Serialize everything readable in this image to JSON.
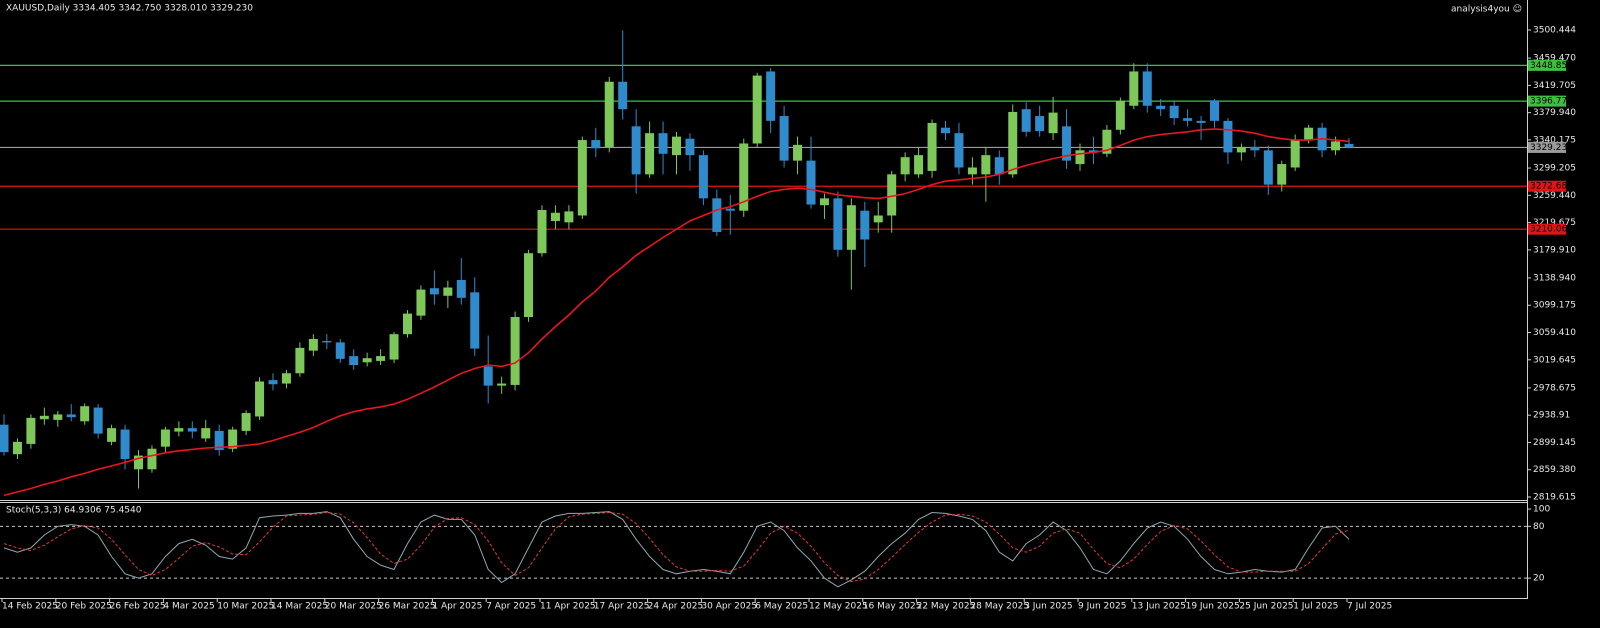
{
  "chart_data": [
    {
      "type": "candlestick",
      "title": "XAUUSD,Daily  3334.405 3342.750 3328.010 3329.230",
      "watermark": "analysis4you ☺",
      "categories": [
        "14 Feb 2025",
        null,
        null,
        null,
        "20 Feb 2025",
        null,
        null,
        null,
        "26 Feb 2025",
        null,
        null,
        null,
        "4 Mar 2025",
        null,
        null,
        null,
        "10 Mar 2025",
        null,
        null,
        null,
        "14 Mar 2025",
        null,
        null,
        null,
        "20 Mar 2025",
        null,
        null,
        null,
        "26 Mar 2025",
        null,
        null,
        null,
        "1 Apr 2025",
        null,
        null,
        null,
        "7 Apr 2025",
        null,
        null,
        null,
        "11 Apr 2025",
        null,
        null,
        null,
        "17 Apr 2025",
        null,
        null,
        null,
        "24 Apr 2025",
        null,
        null,
        null,
        "30 Apr 2025",
        null,
        null,
        null,
        "6 May 2025",
        null,
        null,
        null,
        "12 May 2025",
        null,
        null,
        null,
        "16 May 2025",
        null,
        null,
        null,
        "22 May 2025",
        null,
        null,
        null,
        "28 May 2025",
        null,
        null,
        null,
        "3 Jun 2025",
        null,
        null,
        null,
        "9 Jun 2025",
        null,
        null,
        null,
        "13 Jun 2025",
        null,
        null,
        null,
        "19 Jun 2025",
        null,
        null,
        null,
        "25 Jun 2025",
        null,
        null,
        null,
        "1 Jul 2025",
        null,
        null,
        null,
        "7 Jul 2025"
      ],
      "open": [
        2925,
        2882,
        2897,
        2933,
        2932,
        2940,
        2930,
        2950,
        2900,
        2918,
        2860,
        2860,
        2893,
        2915,
        2920,
        2905,
        2916,
        2890,
        2916,
        2937,
        2990,
        2985,
        3000,
        3033,
        3047,
        3045,
        3025,
        3016,
        3018,
        3020,
        3057,
        3084,
        3124,
        3113,
        3136,
        3118,
        3010,
        2982,
        2983,
        3082,
        3175,
        3222,
        3220,
        3230,
        3340,
        3330,
        3425,
        3360,
        3290,
        3350,
        3318,
        3342,
        3318,
        3255,
        3240,
        3237,
        3335,
        3440,
        3375,
        3310,
        3310,
        3245,
        3255,
        3180,
        3237,
        3220,
        3230,
        3290,
        3290,
        3295,
        3358,
        3350,
        3290,
        3290,
        3315,
        3290,
        3385,
        3375,
        3350,
        3360,
        3305,
        3325,
        3320,
        3355,
        3390,
        3440,
        3390,
        3390,
        3372,
        3368,
        3398,
        3368,
        3322,
        3330,
        3325,
        3275,
        3300,
        3340,
        3358,
        3325,
        3334.405
      ],
      "high": [
        2940,
        2905,
        2940,
        2950,
        2945,
        2955,
        2956,
        2955,
        2925,
        2925,
        2888,
        2895,
        2922,
        2930,
        2930,
        2932,
        2925,
        2922,
        2946,
        2994,
        3000,
        3005,
        3045,
        3057,
        3057,
        3050,
        3035,
        3030,
        3035,
        3060,
        3092,
        3128,
        3150,
        3135,
        3168,
        3140,
        3055,
        2995,
        3090,
        3180,
        3245,
        3245,
        3245,
        3345,
        3358,
        3432,
        3500,
        3385,
        3367,
        3367,
        3352,
        3350,
        3325,
        3268,
        3260,
        3342,
        3438,
        3445,
        3390,
        3345,
        3345,
        3262,
        3265,
        3255,
        3250,
        3250,
        3295,
        3322,
        3330,
        3370,
        3368,
        3365,
        3315,
        3330,
        3325,
        3392,
        3395,
        3390,
        3403,
        3385,
        3335,
        3345,
        3362,
        3402,
        3452,
        3452,
        3400,
        3398,
        3385,
        3375,
        3400,
        3372,
        3335,
        3340,
        3332,
        3310,
        3348,
        3362,
        3365,
        3345,
        3342.75
      ],
      "low": [
        2880,
        2875,
        2890,
        2925,
        2922,
        2930,
        2925,
        2905,
        2895,
        2860,
        2832,
        2855,
        2885,
        2908,
        2905,
        2900,
        2880,
        2885,
        2910,
        2932,
        2975,
        2978,
        2995,
        3025,
        3035,
        3015,
        3005,
        3010,
        3012,
        3015,
        3052,
        3078,
        3100,
        3095,
        3100,
        3025,
        2956,
        2970,
        2975,
        3075,
        3170,
        3210,
        3210,
        3225,
        3315,
        3322,
        3370,
        3262,
        3285,
        3290,
        3290,
        3295,
        3245,
        3200,
        3202,
        3228,
        3330,
        3350,
        3300,
        3290,
        3240,
        3225,
        3170,
        3122,
        3155,
        3205,
        3205,
        3280,
        3285,
        3285,
        3340,
        3290,
        3275,
        3250,
        3275,
        3285,
        3345,
        3345,
        3340,
        3298,
        3295,
        3305,
        3315,
        3348,
        3385,
        3380,
        3375,
        3362,
        3360,
        3340,
        3358,
        3305,
        3310,
        3315,
        3260,
        3265,
        3295,
        3335,
        3315,
        3318,
        3328.01
      ],
      "close": [
        2885,
        2900,
        2935,
        2938,
        2940,
        2936,
        2952,
        2912,
        2920,
        2875,
        2880,
        2890,
        2918,
        2920,
        2915,
        2920,
        2888,
        2918,
        2942,
        2988,
        2984,
        3000,
        3037,
        3050,
        3045,
        3021,
        3012,
        3022,
        3025,
        3057,
        3087,
        3122,
        3115,
        3125,
        3110,
        3036,
        2982,
        2985,
        3082,
        3175,
        3238,
        3234,
        3236,
        3340,
        3328,
        3425,
        3385,
        3290,
        3350,
        3320,
        3345,
        3318,
        3255,
        3206,
        3237,
        3335,
        3434,
        3368,
        3310,
        3333,
        3246,
        3255,
        3180,
        3245,
        3195,
        3230,
        3290,
        3315,
        3318,
        3365,
        3350,
        3300,
        3300,
        3318,
        3290,
        3381,
        3352,
        3353,
        3380,
        3310,
        3325,
        3322,
        3355,
        3397,
        3440,
        3390,
        3385,
        3372,
        3368,
        3365,
        3368,
        3322,
        3330,
        3325,
        3275,
        3305,
        3340,
        3358,
        3325,
        3338,
        3329.23
      ],
      "up_color": "#7ec85a",
      "down_color": "#2f8bcc",
      "ma": {
        "color": "#e8161e",
        "values": [
          2822,
          2827,
          2832,
          2838,
          2843,
          2849,
          2854,
          2860,
          2865,
          2870,
          2876,
          2880,
          2884,
          2887,
          2889,
          2891,
          2892,
          2893,
          2895,
          2897,
          2902,
          2908,
          2914,
          2921,
          2930,
          2938,
          2944,
          2948,
          2951,
          2955,
          2962,
          2971,
          2980,
          2990,
          3000,
          3007,
          3012,
          3010,
          3015,
          3030,
          3050,
          3068,
          3085,
          3104,
          3120,
          3140,
          3155,
          3172,
          3185,
          3198,
          3210,
          3222,
          3230,
          3238,
          3243,
          3250,
          3258,
          3265,
          3268,
          3270,
          3268,
          3264,
          3260,
          3258,
          3256,
          3255,
          3258,
          3262,
          3268,
          3275,
          3280,
          3282,
          3284,
          3286,
          3290,
          3297,
          3303,
          3308,
          3313,
          3317,
          3320,
          3322,
          3325,
          3332,
          3340,
          3345,
          3348,
          3350,
          3352,
          3355,
          3356,
          3355,
          3353,
          3350,
          3345,
          3342,
          3340,
          3340,
          3342,
          3340,
          3338
        ]
      },
      "hlines": [
        {
          "value": 3448.858,
          "color": "#3fbf3f"
        },
        {
          "value": 3396.775,
          "color": "#3fbf3f"
        },
        {
          "value": 3329.23,
          "label": "3329.230",
          "color": "#9a9a9a"
        },
        {
          "value": 3272.685,
          "color": "#e01414"
        },
        {
          "value": 3210.063,
          "color": "#e01414"
        }
      ],
      "ylim": [
        2815.24,
        3544.18
      ],
      "yticks": [
        3500.444,
        {
          "value": 3459.47,
          "label": "3459.470"
        },
        3419.705,
        {
          "value": 3379.94,
          "label": "3379.940"
        },
        3340.175,
        3299.205,
        {
          "value": 3259.44,
          "label": "3259.440"
        },
        3219.675,
        {
          "value": 3179.91,
          "label": "3179.910"
        },
        {
          "value": 3138.94,
          "label": "3138.940"
        },
        3099.175,
        {
          "value": 3059.41,
          "label": "3059.410"
        },
        3019.645,
        2978.675,
        2938.91,
        2899.145,
        {
          "value": 2859.38,
          "label": "2859.380"
        },
        2819.615
      ]
    },
    {
      "type": "line",
      "title": "Stoch(5,3,3) 64.9306 75.4540",
      "series": [
        {
          "color": "#8fa9b0",
          "values": [
            55,
            50,
            55,
            70,
            80,
            82,
            80,
            70,
            45,
            25,
            20,
            25,
            45,
            60,
            65,
            58,
            45,
            42,
            55,
            90,
            92,
            93,
            95,
            95,
            97,
            90,
            65,
            45,
            35,
            30,
            60,
            85,
            93,
            88,
            88,
            70,
            30,
            15,
            25,
            55,
            85,
            92,
            95,
            95,
            96,
            97,
            88,
            65,
            45,
            30,
            25,
            28,
            30,
            28,
            25,
            50,
            80,
            85,
            75,
            55,
            40,
            20,
            10,
            18,
            28,
            45,
            60,
            72,
            88,
            96,
            95,
            92,
            88,
            75,
            50,
            40,
            60,
            70,
            85,
            75,
            55,
            30,
            25,
            40,
            60,
            78,
            85,
            80,
            65,
            45,
            30,
            25,
            27,
            30,
            28,
            27,
            30,
            55,
            78,
            80,
            64.93
          ]
        },
        {
          "color": "#e03a3a",
          "dashed": true,
          "values": [
            60,
            55,
            52,
            58,
            68,
            77,
            81,
            78,
            65,
            47,
            30,
            23,
            30,
            43,
            57,
            61,
            56,
            48,
            47,
            62,
            79,
            92,
            93,
            94,
            96,
            94,
            84,
            67,
            48,
            37,
            42,
            58,
            79,
            89,
            90,
            82,
            63,
            38,
            23,
            32,
            55,
            77,
            91,
            94,
            95,
            96,
            94,
            83,
            66,
            47,
            33,
            28,
            28,
            29,
            28,
            34,
            52,
            72,
            80,
            72,
            57,
            38,
            23,
            16,
            19,
            30,
            44,
            59,
            73,
            85,
            93,
            94,
            92,
            85,
            71,
            55,
            50,
            57,
            72,
            77,
            72,
            53,
            37,
            32,
            42,
            59,
            74,
            81,
            77,
            63,
            47,
            33,
            27,
            27,
            28,
            28,
            28,
            37,
            54,
            71,
            75.45
          ]
        }
      ],
      "levels": [
        80,
        20
      ],
      "ylim": [
        -3,
        107
      ],
      "yticks": [
        100,
        80,
        20
      ]
    }
  ]
}
